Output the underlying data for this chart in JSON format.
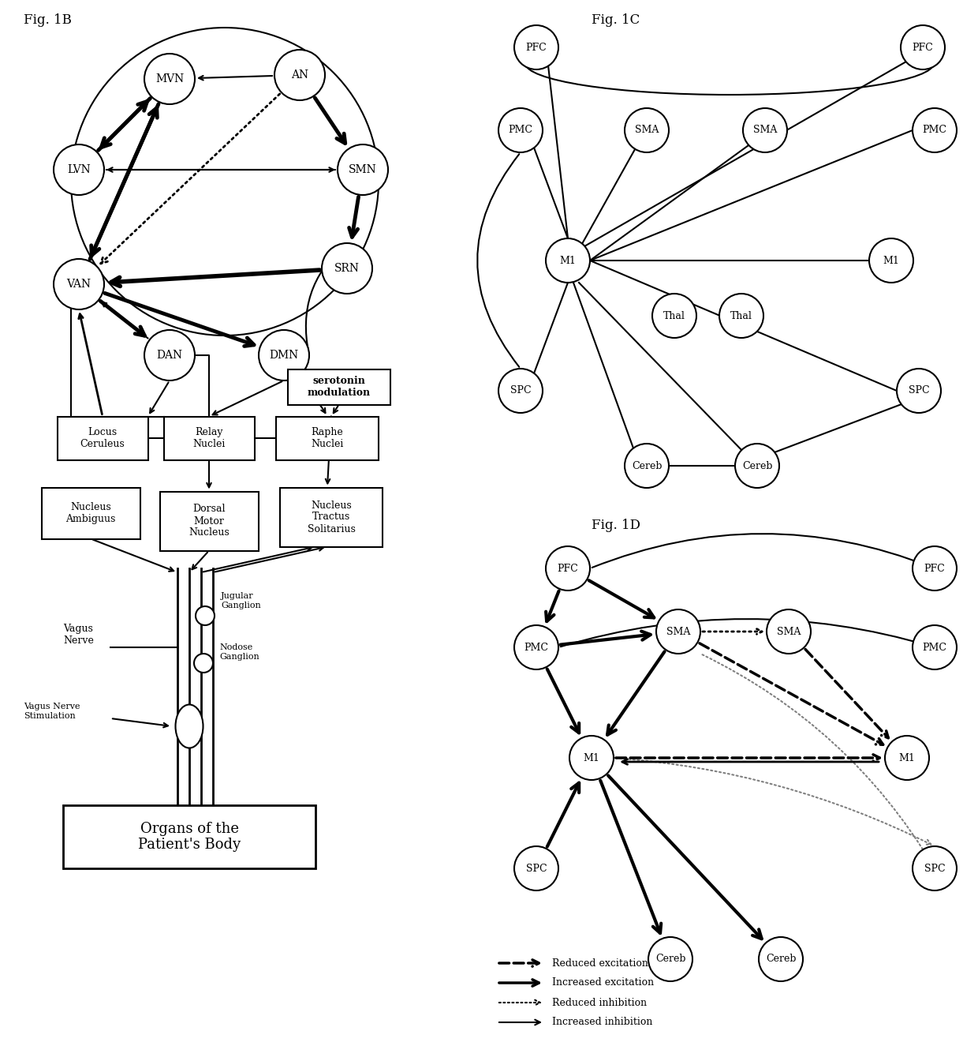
{
  "fig1b_label": "Fig. 1B",
  "fig1c_label": "Fig. 1C",
  "fig1d_label": "Fig. 1D",
  "background": "#ffffff",
  "node_color": "#ffffff",
  "node_edge": "#000000",
  "text_color": "#000000"
}
